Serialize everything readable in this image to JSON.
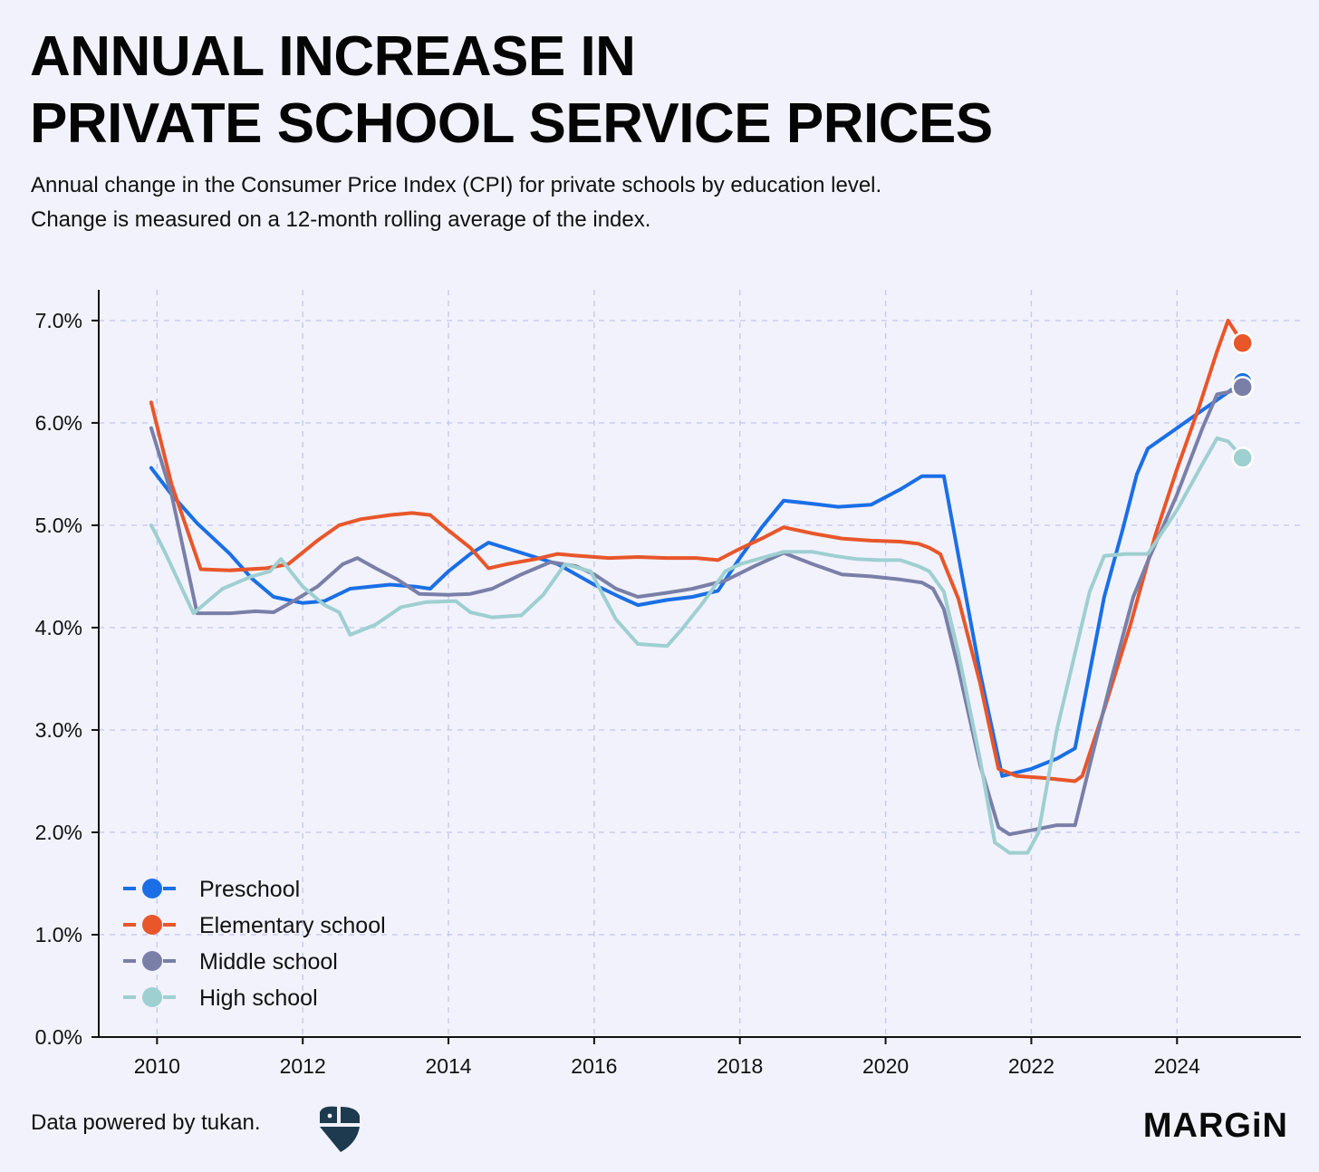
{
  "header": {
    "title_line1": "ANNUAL INCREASE IN",
    "title_line2": "PRIVATE SCHOOL SERVICE PRICES",
    "subtitle_line1": "Annual change in the Consumer Price Index (CPI) for private schools by education level.",
    "subtitle_line2": "Change is measured on a 12-month rolling average of the index."
  },
  "footer": {
    "source": "Data powered by tukan.",
    "brand": "MARGiN"
  },
  "logos": {
    "tukan": "tukan-logo-icon",
    "brand": "margin-logo"
  },
  "chart_data": {
    "type": "line",
    "xlim": [
      2009.2,
      2025.7
    ],
    "ylim": [
      0,
      7.3
    ],
    "x_ticks": [
      2010,
      2012,
      2014,
      2016,
      2018,
      2020,
      2022,
      2024
    ],
    "y_ticks": [
      0,
      1,
      2,
      3,
      4,
      5,
      6,
      7
    ],
    "y_tick_format": "percent_1dp",
    "grid": true,
    "grid_style": "dashed",
    "legend_position": "bottom-left",
    "series": [
      {
        "name": "Preschool",
        "color": "#1a6fe6",
        "points": [
          [
            2009.92,
            5.56
          ],
          [
            2010.2,
            5.3
          ],
          [
            2010.55,
            5.02
          ],
          [
            2011.0,
            4.72
          ],
          [
            2011.3,
            4.48
          ],
          [
            2011.6,
            4.3
          ],
          [
            2012.0,
            4.24
          ],
          [
            2012.3,
            4.26
          ],
          [
            2012.65,
            4.38
          ],
          [
            2013.2,
            4.42
          ],
          [
            2013.55,
            4.4
          ],
          [
            2013.75,
            4.38
          ],
          [
            2014.0,
            4.55
          ],
          [
            2014.3,
            4.72
          ],
          [
            2014.55,
            4.83
          ],
          [
            2015.0,
            4.73
          ],
          [
            2015.5,
            4.62
          ],
          [
            2016.0,
            4.42
          ],
          [
            2016.35,
            4.3
          ],
          [
            2016.6,
            4.22
          ],
          [
            2017.0,
            4.27
          ],
          [
            2017.35,
            4.3
          ],
          [
            2017.7,
            4.36
          ],
          [
            2018.0,
            4.68
          ],
          [
            2018.3,
            4.98
          ],
          [
            2018.6,
            5.24
          ],
          [
            2019.0,
            5.21
          ],
          [
            2019.35,
            5.18
          ],
          [
            2019.8,
            5.2
          ],
          [
            2020.2,
            5.35
          ],
          [
            2020.5,
            5.48
          ],
          [
            2020.8,
            5.48
          ],
          [
            2021.0,
            4.7
          ],
          [
            2021.3,
            3.55
          ],
          [
            2021.6,
            2.55
          ],
          [
            2022.0,
            2.62
          ],
          [
            2022.35,
            2.72
          ],
          [
            2022.6,
            2.82
          ],
          [
            2023.0,
            4.3
          ],
          [
            2023.25,
            4.95
          ],
          [
            2023.45,
            5.5
          ],
          [
            2023.6,
            5.75
          ],
          [
            2024.0,
            5.95
          ],
          [
            2024.4,
            6.15
          ],
          [
            2024.9,
            6.4
          ]
        ]
      },
      {
        "name": "Elementary school",
        "color": "#e8562a",
        "points": [
          [
            2009.92,
            6.2
          ],
          [
            2010.2,
            5.4
          ],
          [
            2010.6,
            4.57
          ],
          [
            2011.0,
            4.56
          ],
          [
            2011.5,
            4.58
          ],
          [
            2011.8,
            4.62
          ],
          [
            2012.2,
            4.85
          ],
          [
            2012.5,
            5.0
          ],
          [
            2012.8,
            5.06
          ],
          [
            2013.2,
            5.1
          ],
          [
            2013.5,
            5.12
          ],
          [
            2013.75,
            5.1
          ],
          [
            2014.0,
            4.95
          ],
          [
            2014.3,
            4.78
          ],
          [
            2014.55,
            4.58
          ],
          [
            2014.8,
            4.62
          ],
          [
            2015.2,
            4.67
          ],
          [
            2015.5,
            4.72
          ],
          [
            2015.8,
            4.7
          ],
          [
            2016.2,
            4.68
          ],
          [
            2016.6,
            4.69
          ],
          [
            2017.0,
            4.68
          ],
          [
            2017.4,
            4.68
          ],
          [
            2017.7,
            4.66
          ],
          [
            2018.0,
            4.77
          ],
          [
            2018.3,
            4.87
          ],
          [
            2018.6,
            4.98
          ],
          [
            2019.0,
            4.92
          ],
          [
            2019.4,
            4.87
          ],
          [
            2019.8,
            4.85
          ],
          [
            2020.2,
            4.84
          ],
          [
            2020.45,
            4.82
          ],
          [
            2020.6,
            4.78
          ],
          [
            2020.75,
            4.72
          ],
          [
            2021.0,
            4.28
          ],
          [
            2021.3,
            3.45
          ],
          [
            2021.55,
            2.62
          ],
          [
            2021.8,
            2.55
          ],
          [
            2022.2,
            2.53
          ],
          [
            2022.6,
            2.5
          ],
          [
            2022.7,
            2.55
          ],
          [
            2023.0,
            3.2
          ],
          [
            2023.35,
            4.0
          ],
          [
            2023.7,
            4.9
          ],
          [
            2024.0,
            5.55
          ],
          [
            2024.3,
            6.15
          ],
          [
            2024.55,
            6.7
          ],
          [
            2024.7,
            7.0
          ],
          [
            2024.9,
            6.78
          ]
        ]
      },
      {
        "name": "Middle school",
        "color": "#7a7fa8",
        "points": [
          [
            2009.92,
            5.95
          ],
          [
            2010.2,
            5.3
          ],
          [
            2010.55,
            4.14
          ],
          [
            2011.0,
            4.14
          ],
          [
            2011.35,
            4.16
          ],
          [
            2011.6,
            4.15
          ],
          [
            2011.85,
            4.25
          ],
          [
            2012.2,
            4.4
          ],
          [
            2012.55,
            4.62
          ],
          [
            2012.75,
            4.68
          ],
          [
            2013.0,
            4.58
          ],
          [
            2013.3,
            4.47
          ],
          [
            2013.6,
            4.33
          ],
          [
            2014.0,
            4.32
          ],
          [
            2014.3,
            4.33
          ],
          [
            2014.6,
            4.38
          ],
          [
            2015.0,
            4.52
          ],
          [
            2015.4,
            4.64
          ],
          [
            2015.75,
            4.6
          ],
          [
            2016.0,
            4.52
          ],
          [
            2016.3,
            4.38
          ],
          [
            2016.6,
            4.3
          ],
          [
            2017.0,
            4.34
          ],
          [
            2017.35,
            4.38
          ],
          [
            2017.8,
            4.46
          ],
          [
            2018.2,
            4.6
          ],
          [
            2018.6,
            4.73
          ],
          [
            2019.0,
            4.62
          ],
          [
            2019.4,
            4.52
          ],
          [
            2019.8,
            4.5
          ],
          [
            2020.2,
            4.47
          ],
          [
            2020.5,
            4.44
          ],
          [
            2020.65,
            4.38
          ],
          [
            2020.8,
            4.18
          ],
          [
            2021.0,
            3.6
          ],
          [
            2021.3,
            2.65
          ],
          [
            2021.55,
            2.05
          ],
          [
            2021.7,
            1.98
          ],
          [
            2022.0,
            2.02
          ],
          [
            2022.35,
            2.07
          ],
          [
            2022.6,
            2.07
          ],
          [
            2022.8,
            2.65
          ],
          [
            2023.1,
            3.5
          ],
          [
            2023.4,
            4.3
          ],
          [
            2023.6,
            4.65
          ],
          [
            2024.0,
            5.3
          ],
          [
            2024.35,
            5.95
          ],
          [
            2024.55,
            6.28
          ],
          [
            2024.7,
            6.3
          ],
          [
            2024.9,
            6.35
          ]
        ]
      },
      {
        "name": "High school",
        "color": "#9ecfd1",
        "points": [
          [
            2009.92,
            5.0
          ],
          [
            2010.1,
            4.75
          ],
          [
            2010.5,
            4.14
          ],
          [
            2010.9,
            4.38
          ],
          [
            2011.3,
            4.5
          ],
          [
            2011.55,
            4.55
          ],
          [
            2011.7,
            4.67
          ],
          [
            2012.0,
            4.4
          ],
          [
            2012.3,
            4.22
          ],
          [
            2012.5,
            4.15
          ],
          [
            2012.65,
            3.93
          ],
          [
            2013.0,
            4.03
          ],
          [
            2013.35,
            4.2
          ],
          [
            2013.7,
            4.25
          ],
          [
            2014.1,
            4.26
          ],
          [
            2014.3,
            4.15
          ],
          [
            2014.6,
            4.1
          ],
          [
            2015.0,
            4.12
          ],
          [
            2015.3,
            4.32
          ],
          [
            2015.6,
            4.62
          ],
          [
            2015.95,
            4.55
          ],
          [
            2016.3,
            4.08
          ],
          [
            2016.6,
            3.84
          ],
          [
            2017.0,
            3.82
          ],
          [
            2017.2,
            3.98
          ],
          [
            2017.5,
            4.25
          ],
          [
            2017.8,
            4.55
          ],
          [
            2018.0,
            4.62
          ],
          [
            2018.3,
            4.68
          ],
          [
            2018.6,
            4.74
          ],
          [
            2019.0,
            4.74
          ],
          [
            2019.3,
            4.7
          ],
          [
            2019.6,
            4.67
          ],
          [
            2019.9,
            4.66
          ],
          [
            2020.2,
            4.66
          ],
          [
            2020.45,
            4.6
          ],
          [
            2020.6,
            4.55
          ],
          [
            2020.8,
            4.35
          ],
          [
            2021.0,
            3.75
          ],
          [
            2021.3,
            2.7
          ],
          [
            2021.5,
            1.9
          ],
          [
            2021.7,
            1.8
          ],
          [
            2021.95,
            1.8
          ],
          [
            2022.1,
            2.0
          ],
          [
            2022.35,
            3.0
          ],
          [
            2022.6,
            3.75
          ],
          [
            2022.8,
            4.35
          ],
          [
            2023.0,
            4.7
          ],
          [
            2023.3,
            4.72
          ],
          [
            2023.6,
            4.72
          ],
          [
            2024.0,
            5.15
          ],
          [
            2024.35,
            5.6
          ],
          [
            2024.55,
            5.85
          ],
          [
            2024.7,
            5.82
          ],
          [
            2024.9,
            5.66
          ]
        ]
      }
    ]
  }
}
